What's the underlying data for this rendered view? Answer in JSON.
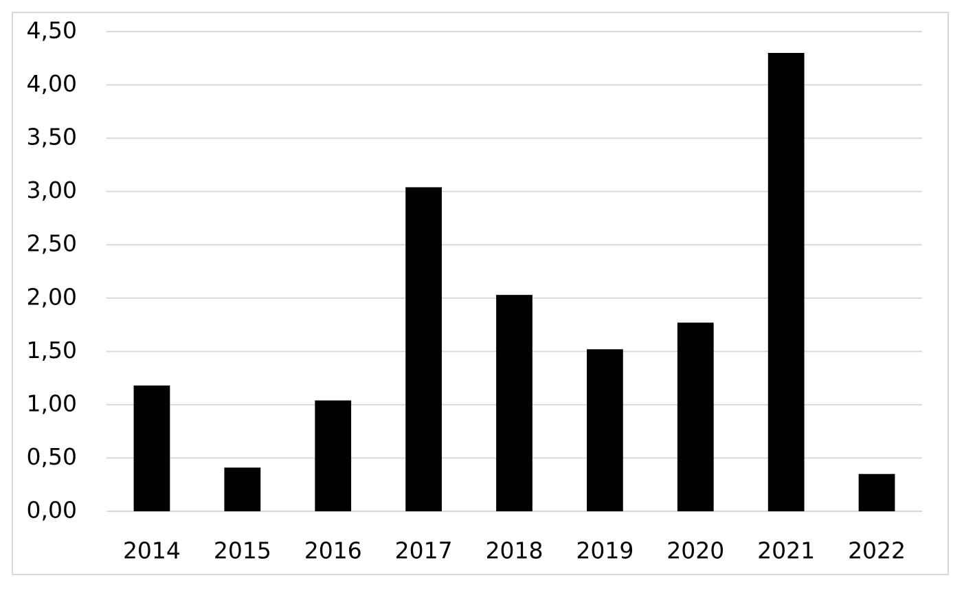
{
  "chart_data": {
    "type": "bar",
    "categories": [
      "2014",
      "2015",
      "2016",
      "2017",
      "2018",
      "2019",
      "2020",
      "2021",
      "2022"
    ],
    "values": [
      1.18,
      0.41,
      1.04,
      3.04,
      2.03,
      1.52,
      1.77,
      4.3,
      0.35
    ],
    "color": "#000000",
    "ylim": [
      0,
      4.5
    ],
    "yticks": [
      {
        "value": 0,
        "label": "0,00"
      },
      {
        "value": 0.5,
        "label": "0,50"
      },
      {
        "value": 1,
        "label": "1,00"
      },
      {
        "value": 1.5,
        "label": "1,50"
      },
      {
        "value": 2,
        "label": "2,00"
      },
      {
        "value": 2.5,
        "label": "2,50"
      },
      {
        "value": 3,
        "label": "3,00"
      },
      {
        "value": 3.5,
        "label": "3,50"
      },
      {
        "value": 4,
        "label": "4,00"
      },
      {
        "value": 4.5,
        "label": "4,50"
      }
    ],
    "grid": true
  }
}
